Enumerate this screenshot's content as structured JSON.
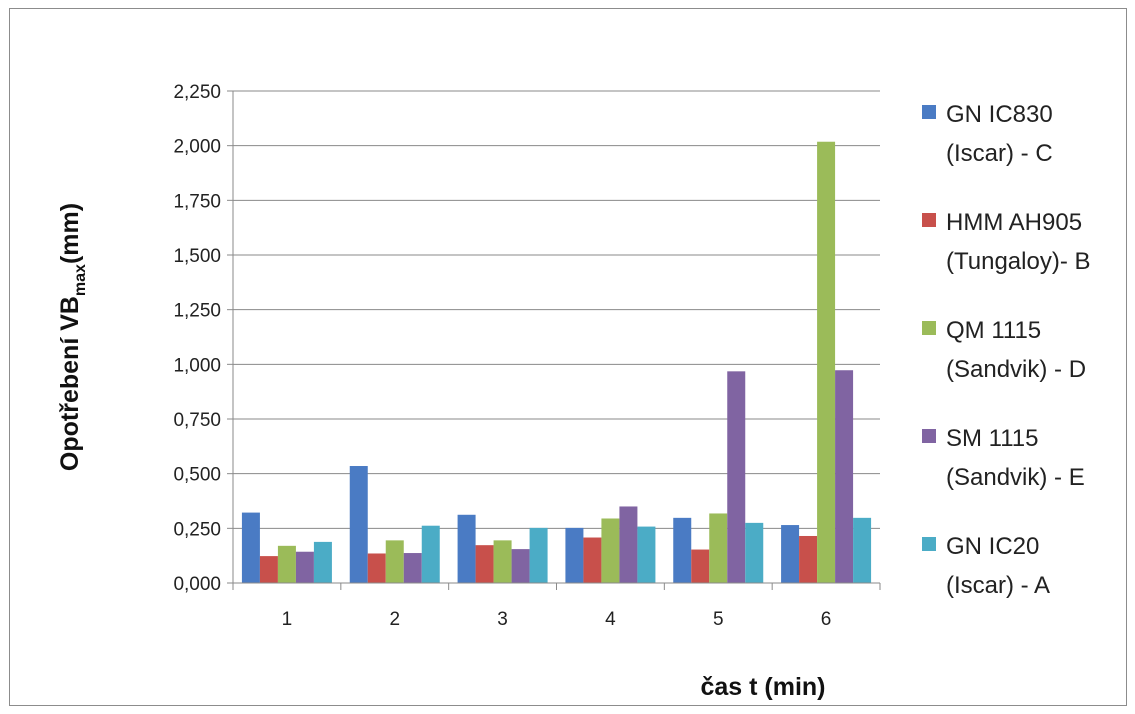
{
  "chart_data": {
    "type": "bar",
    "categories": [
      "1",
      "2",
      "3",
      "4",
      "5",
      "6"
    ],
    "series": [
      {
        "name": "GN IC830 (Iscar) - C",
        "legend_lines": [
          "GN IC830",
          "(Iscar) - C"
        ],
        "color": "#4a7bc4",
        "values": [
          0.322,
          0.535,
          0.312,
          0.252,
          0.298,
          0.265
        ]
      },
      {
        "name": "HMM AH905 (Tungaloy)- B",
        "legend_lines": [
          "HMM AH905",
          "(Tungaloy)- B"
        ],
        "color": "#c8504b",
        "values": [
          0.123,
          0.135,
          0.173,
          0.208,
          0.153,
          0.215
        ]
      },
      {
        "name": "QM 1115 (Sandvik) - D",
        "legend_lines": [
          "QM 1115",
          "(Sandvik) - D"
        ],
        "color": "#9bbb59",
        "values": [
          0.17,
          0.195,
          0.195,
          0.295,
          0.318,
          2.018
        ]
      },
      {
        "name": "SM 1115 (Sandvik) - E",
        "legend_lines": [
          "SM 1115",
          "(Sandvik) - E"
        ],
        "color": "#8064a2",
        "values": [
          0.143,
          0.137,
          0.155,
          0.35,
          0.968,
          0.973
        ]
      },
      {
        "name": "GN IC20 (Iscar) - A",
        "legend_lines": [
          "GN IC20",
          "(Iscar) - A"
        ],
        "color": "#4bacc6",
        "values": [
          0.188,
          0.262,
          0.252,
          0.258,
          0.275,
          0.298
        ]
      }
    ],
    "ylabel_main": "Opotřebení VB",
    "ylabel_sub": "max",
    "ylabel_suffix": "(mm)",
    "xlabel": "čas t (min)",
    "ylim": [
      0,
      2.25
    ],
    "yticks": [
      "0,000",
      "0,250",
      "0,500",
      "0,750",
      "1,000",
      "1,250",
      "1,500",
      "1,750",
      "2,000",
      "2,250"
    ],
    "grid": true,
    "legend_position": "right"
  }
}
